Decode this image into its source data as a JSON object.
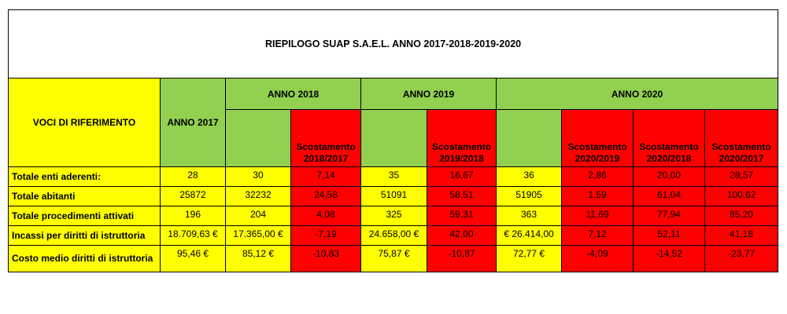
{
  "title": "RIEPILOGO SUAP S.A.E.L. ANNO 2017-2018-2019-2020",
  "headers": {
    "voci": "VOCI DI RIFERIMENTO",
    "anno2017": "ANNO 2017",
    "anno2018": "ANNO 2018",
    "anno2019": "ANNO 2019",
    "anno2020": "ANNO 2020",
    "scost_2018_2017": "Scostamento 2018/2017",
    "scost_2019_2018": "Scostamento 2019/2018",
    "scost_2020_2019": "Scostamento 2020/2019",
    "scost_2020_2018": "Scostamento 2020/2018",
    "scost_2020_2017": "Scostamento 2020/2017"
  },
  "rows": [
    {
      "label": "Totale enti aderenti:",
      "v2017": "28",
      "v2018": "30",
      "s18_17": "7,14",
      "v2019": "35",
      "s19_18": "16,67",
      "v2020": "36",
      "s20_19": "2,86",
      "s20_18": "20,00",
      "s20_17": "28,57"
    },
    {
      "label": "Totale abitanti",
      "v2017": "25872",
      "v2018": "32232",
      "s18_17": "24,58",
      "v2019": "51091",
      "s19_18": "58,51",
      "v2020": "51905",
      "s20_19": "1,59",
      "s20_18": "61,04",
      "s20_17": "100,62"
    },
    {
      "label": "Totale procedimenti attivati",
      "v2017": "196",
      "v2018": "204",
      "s18_17": "4,08",
      "v2019": "325",
      "s19_18": "59,31",
      "v2020": "363",
      "s20_19": "11,69",
      "s20_18": "77,94",
      "s20_17": "85,20"
    },
    {
      "label": "Incassi per diritti di istruttoria",
      "v2017": "18.709,63 €",
      "v2018": "17.365,00 €",
      "s18_17": "-7,19",
      "v2019": "24.658,00 €",
      "s19_18": "42,00",
      "v2020": "€ 26.414,00",
      "s20_19": "7,12",
      "s20_18": "52,11",
      "s20_17": "41,18"
    },
    {
      "label": "Costo medio diritti di istruttoria",
      "v2017": "95,46 €",
      "v2018": "85,12 €",
      "s18_17": "-10,83",
      "v2019": "75,87 €",
      "s19_18": "-10,87",
      "v2020": "72,77 €",
      "s20_19": "-4,09",
      "s20_18": "-14,52",
      "s20_17": "-23,77"
    }
  ],
  "colors": {
    "yellow": "#ffff00",
    "green": "#92d050",
    "red": "#ff0000"
  }
}
